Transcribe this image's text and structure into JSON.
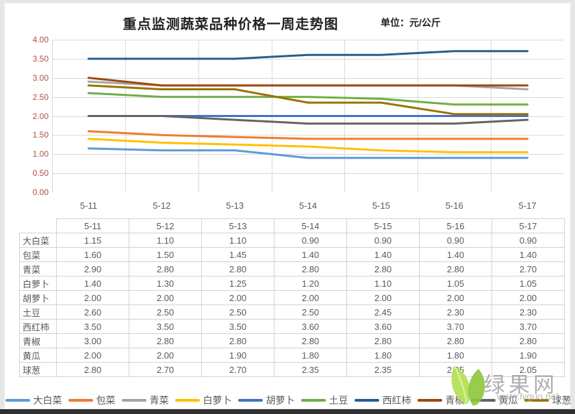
{
  "page": {
    "title": "重点监测蔬菜品种价格一周走势图",
    "unit_label": "单位：元/公斤"
  },
  "chart_data": {
    "type": "line",
    "title": "重点监测蔬菜品种价格一周走势图",
    "unit": "元/公斤",
    "categories": [
      "5-11",
      "5-12",
      "5-13",
      "5-14",
      "5-15",
      "5-16",
      "5-17"
    ],
    "ylim": [
      0,
      4
    ],
    "ytick_step": 0.5,
    "ytick_labels": [
      "4.00",
      "3.50",
      "3.00",
      "2.50",
      "2.00",
      "1.50",
      "1.00",
      "0.50",
      "0.00"
    ],
    "grid": true,
    "legend_position": "bottom",
    "series": [
      {
        "name": "大白菜",
        "color": "#5B9BD5",
        "values": [
          1.15,
          1.1,
          1.1,
          0.9,
          0.9,
          0.9,
          0.9
        ]
      },
      {
        "name": "包菜",
        "color": "#ED7D31",
        "values": [
          1.6,
          1.5,
          1.45,
          1.4,
          1.4,
          1.4,
          1.4
        ]
      },
      {
        "name": "青菜",
        "color": "#A5A5A5",
        "values": [
          2.9,
          2.8,
          2.8,
          2.8,
          2.8,
          2.8,
          2.7
        ]
      },
      {
        "name": "白萝卜",
        "color": "#FFC000",
        "values": [
          1.4,
          1.3,
          1.25,
          1.2,
          1.1,
          1.05,
          1.05
        ]
      },
      {
        "name": "胡萝卜",
        "color": "#4472C4",
        "values": [
          2.0,
          2.0,
          2.0,
          2.0,
          2.0,
          2.0,
          2.0
        ]
      },
      {
        "name": "土豆",
        "color": "#70AD47",
        "values": [
          2.6,
          2.5,
          2.5,
          2.5,
          2.45,
          2.3,
          2.3
        ]
      },
      {
        "name": "西红柿",
        "color": "#255E91",
        "values": [
          3.5,
          3.5,
          3.5,
          3.6,
          3.6,
          3.7,
          3.7
        ]
      },
      {
        "name": "青椒",
        "color": "#9E480E",
        "values": [
          3.0,
          2.8,
          2.8,
          2.8,
          2.8,
          2.8,
          2.8
        ]
      },
      {
        "name": "黄瓜",
        "color": "#636363",
        "values": [
          2.0,
          2.0,
          1.9,
          1.8,
          1.8,
          1.8,
          1.9
        ]
      },
      {
        "name": "球葱",
        "color": "#997300",
        "values": [
          2.8,
          2.7,
          2.7,
          2.35,
          2.35,
          2.05,
          2.05
        ]
      }
    ]
  },
  "table": {
    "date_headers": [
      "5-11",
      "5-12",
      "5-13",
      "5-14",
      "5-15",
      "5-16",
      "5-17"
    ],
    "rows": [
      {
        "label": "大白菜",
        "values": [
          "1.15",
          "1.10",
          "1.10",
          "0.90",
          "0.90",
          "0.90",
          "0.90"
        ]
      },
      {
        "label": "包菜",
        "values": [
          "1.60",
          "1.50",
          "1.45",
          "1.40",
          "1.40",
          "1.40",
          "1.40"
        ]
      },
      {
        "label": "青菜",
        "values": [
          "2.90",
          "2.80",
          "2.80",
          "2.80",
          "2.80",
          "2.80",
          "2.70"
        ]
      },
      {
        "label": "白萝卜",
        "values": [
          "1.40",
          "1.30",
          "1.25",
          "1.20",
          "1.10",
          "1.05",
          "1.05"
        ]
      },
      {
        "label": "胡萝卜",
        "values": [
          "2.00",
          "2.00",
          "2.00",
          "2.00",
          "2.00",
          "2.00",
          "2.00"
        ]
      },
      {
        "label": "土豆",
        "values": [
          "2.60",
          "2.50",
          "2.50",
          "2.50",
          "2.45",
          "2.30",
          "2.30"
        ]
      },
      {
        "label": "西红柿",
        "values": [
          "3.50",
          "3.50",
          "3.50",
          "3.60",
          "3.60",
          "3.70",
          "3.70"
        ]
      },
      {
        "label": "青椒",
        "values": [
          "3.00",
          "2.80",
          "2.80",
          "2.80",
          "2.80",
          "2.80",
          "2.80"
        ]
      },
      {
        "label": "黄瓜",
        "values": [
          "2.00",
          "2.00",
          "1.90",
          "1.80",
          "1.80",
          "1.80",
          "1.90"
        ]
      },
      {
        "label": "球葱",
        "values": [
          "2.80",
          "2.70",
          "2.70",
          "2.35",
          "2.35",
          "2.05",
          "2.05"
        ]
      }
    ]
  },
  "watermark": {
    "site_name": "绿果网",
    "site_url": "www.lvguo.net",
    "leaf_colors": [
      "#b5e05a",
      "#8cc63e"
    ]
  },
  "colors": {
    "grid_line": "#d9d9d9",
    "axis_line": "#bfbfbf",
    "y_tick_text": "#ad5049",
    "x_tick_text": "#595959",
    "table_border": "#d2d2d2",
    "table_text": "#595959"
  }
}
